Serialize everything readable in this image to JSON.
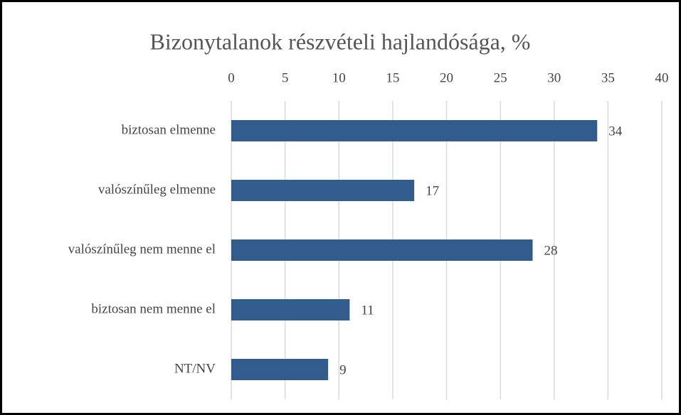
{
  "chart_data": {
    "type": "bar",
    "orientation": "horizontal",
    "title": "Bizonytalanok részvételi hajlandósága, %",
    "categories": [
      "biztosan elmenne",
      "valószínűleg elmenne",
      "valószínűleg nem menne el",
      "biztosan nem menne el",
      "NT/NV"
    ],
    "values": [
      34,
      17,
      28,
      11,
      9
    ],
    "color": "#335c8e",
    "xlim": [
      0,
      40
    ],
    "xticks": [
      0,
      5,
      10,
      15,
      20,
      25,
      30,
      35,
      40
    ],
    "grid": true
  }
}
